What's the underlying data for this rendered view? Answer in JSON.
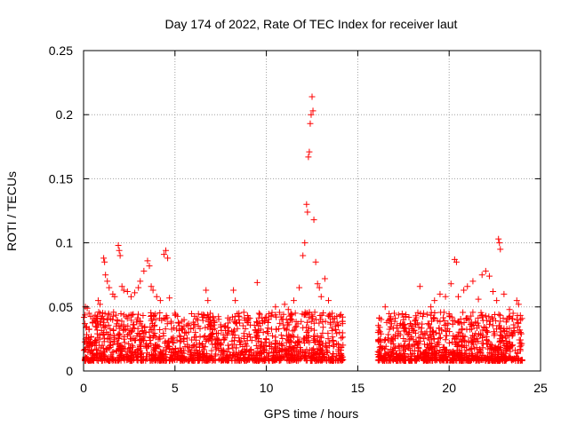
{
  "chart_data": {
    "type": "scatter",
    "title": "Day 174 of 2022, Rate Of TEC Index for receiver laut",
    "xlabel": "GPS time / hours",
    "ylabel": "ROTI / TECUs",
    "xlim": [
      0,
      25
    ],
    "ylim": [
      0,
      0.25
    ],
    "xticks": [
      0,
      5,
      10,
      15,
      20,
      25
    ],
    "yticks": [
      0,
      0.05,
      0.1,
      0.15,
      0.2,
      0.25
    ],
    "xtick_labels": [
      "0",
      "5",
      "10",
      "15",
      "20",
      "25"
    ],
    "ytick_labels": [
      "0",
      "0.05",
      "0.1",
      "0.15",
      "0.2",
      "0.25"
    ],
    "grid": true,
    "marker": "plus",
    "color": "#ff0000",
    "data_gap_hours": [
      14.2,
      16.1
    ],
    "series": [
      {
        "points": [
          [
            0.1,
            0.05
          ],
          [
            0.2,
            0.049
          ],
          [
            0.3,
            0.045
          ],
          [
            0.5,
            0.038
          ],
          [
            0.7,
            0.041
          ],
          [
            0.8,
            0.055
          ],
          [
            0.9,
            0.052
          ],
          [
            1.1,
            0.088
          ],
          [
            1.15,
            0.085
          ],
          [
            1.2,
            0.075
          ],
          [
            1.3,
            0.07
          ],
          [
            1.4,
            0.065
          ],
          [
            1.6,
            0.06
          ],
          [
            1.7,
            0.058
          ],
          [
            1.9,
            0.098
          ],
          [
            1.95,
            0.094
          ],
          [
            2.0,
            0.09
          ],
          [
            2.1,
            0.066
          ],
          [
            2.2,
            0.063
          ],
          [
            2.4,
            0.062
          ],
          [
            2.6,
            0.058
          ],
          [
            2.8,
            0.061
          ],
          [
            3.0,
            0.065
          ],
          [
            3.1,
            0.07
          ],
          [
            3.3,
            0.078
          ],
          [
            3.5,
            0.086
          ],
          [
            3.6,
            0.082
          ],
          [
            3.7,
            0.066
          ],
          [
            3.8,
            0.063
          ],
          [
            4.0,
            0.058
          ],
          [
            4.2,
            0.055
          ],
          [
            4.4,
            0.091
          ],
          [
            4.5,
            0.094
          ],
          [
            4.6,
            0.088
          ],
          [
            4.7,
            0.057
          ],
          [
            5.0,
            0.045
          ],
          [
            5.5,
            0.04
          ],
          [
            6.0,
            0.038
          ],
          [
            6.5,
            0.042
          ],
          [
            6.7,
            0.063
          ],
          [
            6.8,
            0.055
          ],
          [
            7.0,
            0.035
          ],
          [
            7.5,
            0.036
          ],
          [
            8.0,
            0.04
          ],
          [
            8.2,
            0.063
          ],
          [
            8.3,
            0.055
          ],
          [
            8.5,
            0.045
          ],
          [
            9.0,
            0.04
          ],
          [
            9.5,
            0.069
          ],
          [
            9.6,
            0.045
          ],
          [
            10.0,
            0.042
          ],
          [
            10.5,
            0.05
          ],
          [
            11.0,
            0.052
          ],
          [
            11.2,
            0.048
          ],
          [
            11.5,
            0.055
          ],
          [
            11.8,
            0.065
          ],
          [
            12.0,
            0.09
          ],
          [
            12.1,
            0.1
          ],
          [
            12.2,
            0.13
          ],
          [
            12.25,
            0.124
          ],
          [
            12.3,
            0.167
          ],
          [
            12.35,
            0.171
          ],
          [
            12.4,
            0.193
          ],
          [
            12.45,
            0.2
          ],
          [
            12.5,
            0.214
          ],
          [
            12.55,
            0.203
          ],
          [
            12.6,
            0.118
          ],
          [
            12.7,
            0.085
          ],
          [
            12.8,
            0.068
          ],
          [
            12.9,
            0.065
          ],
          [
            13.0,
            0.058
          ],
          [
            13.2,
            0.072
          ],
          [
            13.4,
            0.055
          ],
          [
            13.6,
            0.045
          ],
          [
            13.8,
            0.035
          ],
          [
            14.0,
            0.03
          ],
          [
            16.2,
            0.034
          ],
          [
            16.5,
            0.05
          ],
          [
            16.8,
            0.04
          ],
          [
            17.0,
            0.045
          ],
          [
            17.5,
            0.04
          ],
          [
            17.9,
            0.036
          ],
          [
            18.4,
            0.066
          ],
          [
            18.6,
            0.045
          ],
          [
            19.0,
            0.05
          ],
          [
            19.2,
            0.055
          ],
          [
            19.5,
            0.06
          ],
          [
            19.8,
            0.058
          ],
          [
            20.1,
            0.068
          ],
          [
            20.3,
            0.087
          ],
          [
            20.4,
            0.085
          ],
          [
            20.5,
            0.058
          ],
          [
            20.8,
            0.063
          ],
          [
            21.0,
            0.066
          ],
          [
            21.3,
            0.07
          ],
          [
            21.6,
            0.056
          ],
          [
            21.8,
            0.075
          ],
          [
            22.0,
            0.078
          ],
          [
            22.2,
            0.074
          ],
          [
            22.4,
            0.062
          ],
          [
            22.6,
            0.055
          ],
          [
            22.7,
            0.103
          ],
          [
            22.75,
            0.1
          ],
          [
            22.8,
            0.095
          ],
          [
            23.0,
            0.06
          ],
          [
            23.3,
            0.048
          ],
          [
            23.5,
            0.045
          ],
          [
            23.7,
            0.055
          ],
          [
            23.8,
            0.052
          ],
          [
            23.9,
            0.04
          ]
        ]
      }
    ]
  }
}
